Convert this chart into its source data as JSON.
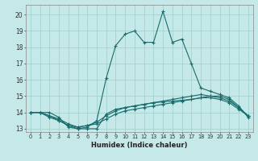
{
  "xlabel": "Humidex (Indice chaleur)",
  "ylabel": "",
  "xlim": [
    -0.5,
    23.5
  ],
  "ylim": [
    12.8,
    20.6
  ],
  "yticks": [
    13,
    14,
    15,
    16,
    17,
    18,
    19,
    20
  ],
  "xticks": [
    0,
    1,
    2,
    3,
    4,
    5,
    6,
    7,
    8,
    9,
    10,
    11,
    12,
    13,
    14,
    15,
    16,
    17,
    18,
    19,
    20,
    21,
    22,
    23
  ],
  "xtick_labels": [
    "0",
    "1",
    "2",
    "3",
    "4",
    "5",
    "6",
    "7",
    "8",
    "9",
    "10",
    "11",
    "12",
    "13",
    "14",
    "15",
    "16",
    "17",
    "18",
    "19",
    "20",
    "21",
    "22",
    "23"
  ],
  "bg_color": "#c5e8e8",
  "grid_color": "#9ecece",
  "line_color": "#1a6b6b",
  "series": [
    [
      14.0,
      14.0,
      14.0,
      13.7,
      13.1,
      13.0,
      13.0,
      13.0,
      13.9,
      14.2,
      14.3,
      14.4,
      14.5,
      14.6,
      14.65,
      14.7,
      14.75,
      14.8,
      14.9,
      15.0,
      15.0,
      14.8,
      14.3,
      13.8
    ],
    [
      14.0,
      14.0,
      13.7,
      13.5,
      13.2,
      13.0,
      13.1,
      13.5,
      16.1,
      18.1,
      18.8,
      19.0,
      18.3,
      18.3,
      20.2,
      18.3,
      18.5,
      17.0,
      15.5,
      15.3,
      15.1,
      14.9,
      14.4,
      13.7
    ],
    [
      14.0,
      14.0,
      13.8,
      13.5,
      13.2,
      13.1,
      13.2,
      13.3,
      13.6,
      13.9,
      14.1,
      14.2,
      14.3,
      14.4,
      14.5,
      14.6,
      14.7,
      14.8,
      14.9,
      14.9,
      14.8,
      14.6,
      14.2,
      13.8
    ],
    [
      14.0,
      14.0,
      13.8,
      13.6,
      13.3,
      13.1,
      13.2,
      13.4,
      13.8,
      14.1,
      14.3,
      14.4,
      14.5,
      14.6,
      14.7,
      14.8,
      14.9,
      15.0,
      15.1,
      15.0,
      14.9,
      14.7,
      14.3,
      13.8
    ]
  ]
}
